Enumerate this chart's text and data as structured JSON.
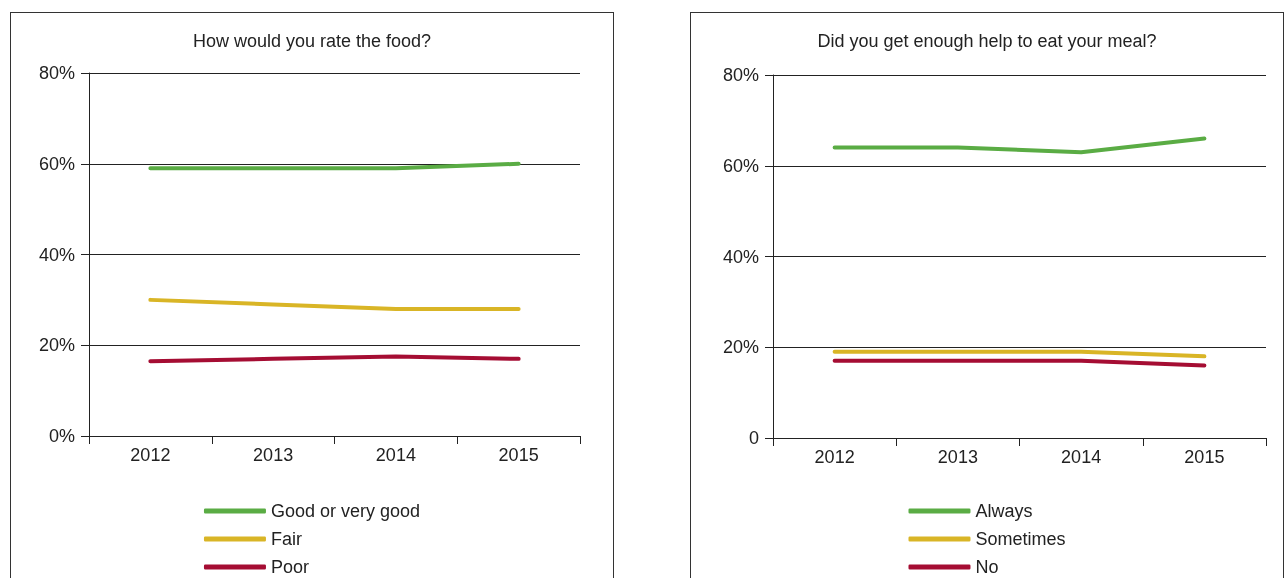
{
  "chart_data": [
    {
      "type": "line",
      "title": "How would you rate the food?",
      "categories": [
        "2012",
        "2013",
        "2014",
        "2015"
      ],
      "series": [
        {
          "name": "Good or very good",
          "color": "#5aac44",
          "values": [
            59,
            59,
            59,
            60
          ]
        },
        {
          "name": "Fair",
          "color": "#d9b526",
          "values": [
            30,
            29,
            28,
            28
          ]
        },
        {
          "name": "Poor",
          "color": "#a50d33",
          "values": [
            16.5,
            17,
            17.5,
            17
          ]
        }
      ],
      "ylim": [
        0,
        80
      ],
      "yticks": [
        {
          "value": 0,
          "label": "0%"
        },
        {
          "value": 20,
          "label": "20%"
        },
        {
          "value": 40,
          "label": "40%"
        },
        {
          "value": 60,
          "label": "60%"
        },
        {
          "value": 80,
          "label": "80%"
        }
      ],
      "grid": "y",
      "legend": "bottom",
      "marker": "none"
    },
    {
      "type": "line",
      "title": "Did you get enough help to eat your meal?",
      "categories": [
        "2012",
        "2013",
        "2014",
        "2015"
      ],
      "series": [
        {
          "name": "Always",
          "color": "#5aac44",
          "values": [
            64,
            64,
            63,
            66
          ]
        },
        {
          "name": "Sometimes",
          "color": "#d9b526",
          "values": [
            19,
            19,
            19,
            18
          ]
        },
        {
          "name": "No",
          "color": "#a50d33",
          "values": [
            17,
            17,
            17,
            16
          ]
        }
      ],
      "ylim": [
        0,
        80
      ],
      "yticks": [
        {
          "value": 0,
          "label": "0"
        },
        {
          "value": 20,
          "label": "20%"
        },
        {
          "value": 40,
          "label": "40%"
        },
        {
          "value": 60,
          "label": "60%"
        },
        {
          "value": 80,
          "label": "80%"
        }
      ],
      "grid": "y",
      "legend": "bottom",
      "marker": "none"
    }
  ]
}
